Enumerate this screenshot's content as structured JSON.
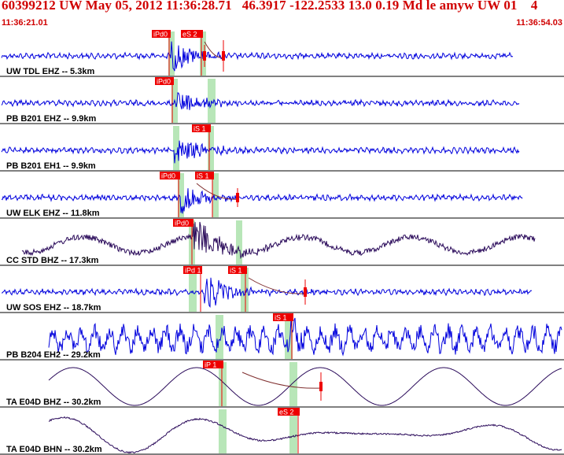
{
  "header": {
    "title": "60399212 UW May 05, 2012 11:36:28.71   46.3917 -122.2533 13.0 0.19 Md le amyw UW 01    4",
    "start_time": "11:36:21.01",
    "end_time": "11:36:54.03"
  },
  "colors": {
    "header_text": "#d00000",
    "trace_blue": "#0000dd",
    "trace_dark": "#2a0a5a",
    "pick_fill": "#ee0000",
    "pick_text": "#ffffff",
    "window_band": "#b8e6b8",
    "panel_border": "#000000"
  },
  "chart_data": {
    "type": "waveform",
    "x_range": [
      "11:36:21.01",
      "11:36:54.03"
    ],
    "traces": [
      {
        "label": "UW TDL EHZ -- 5.3km",
        "color": "trace_blue",
        "picks": [
          {
            "label": "iPd0"
          },
          {
            "label": "eS 2"
          }
        ],
        "windows": 2
      },
      {
        "label": "PB B201 EHZ -- 9.9km",
        "color": "trace_blue",
        "picks": [
          {
            "label": "iPd0"
          }
        ],
        "windows": 2
      },
      {
        "label": "PB B201 EH1 -- 9.9km",
        "color": "trace_blue",
        "picks": [
          {
            "label": "iS 1"
          }
        ],
        "windows": 2
      },
      {
        "label": "UW ELK EHZ -- 11.8km",
        "color": "trace_blue",
        "picks": [
          {
            "label": "iPd0"
          },
          {
            "label": "iS 1"
          }
        ],
        "windows": 2
      },
      {
        "label": "CC STD BHZ -- 17.3km",
        "color": "trace_dark",
        "picks": [
          {
            "label": "iPd0"
          }
        ],
        "windows": 2
      },
      {
        "label": "UW SOS EHZ -- 18.7km",
        "color": "trace_blue",
        "picks": [
          {
            "label": "iPd 1"
          },
          {
            "label": "iS 1"
          }
        ],
        "windows": 2
      },
      {
        "label": "PB B204 EH2 -- 29.2km",
        "color": "trace_blue",
        "picks": [
          {
            "label": "iS 1"
          }
        ],
        "windows": 2
      },
      {
        "label": "TA E04D BHZ -- 30.2km",
        "color": "trace_dark",
        "picks": [
          {
            "label": "iP 1"
          }
        ],
        "windows": 2
      },
      {
        "label": "TA E04D BHN -- 30.2km",
        "color": "trace_dark",
        "picks": [
          {
            "label": "eS 2"
          }
        ],
        "windows": 2
      }
    ]
  }
}
